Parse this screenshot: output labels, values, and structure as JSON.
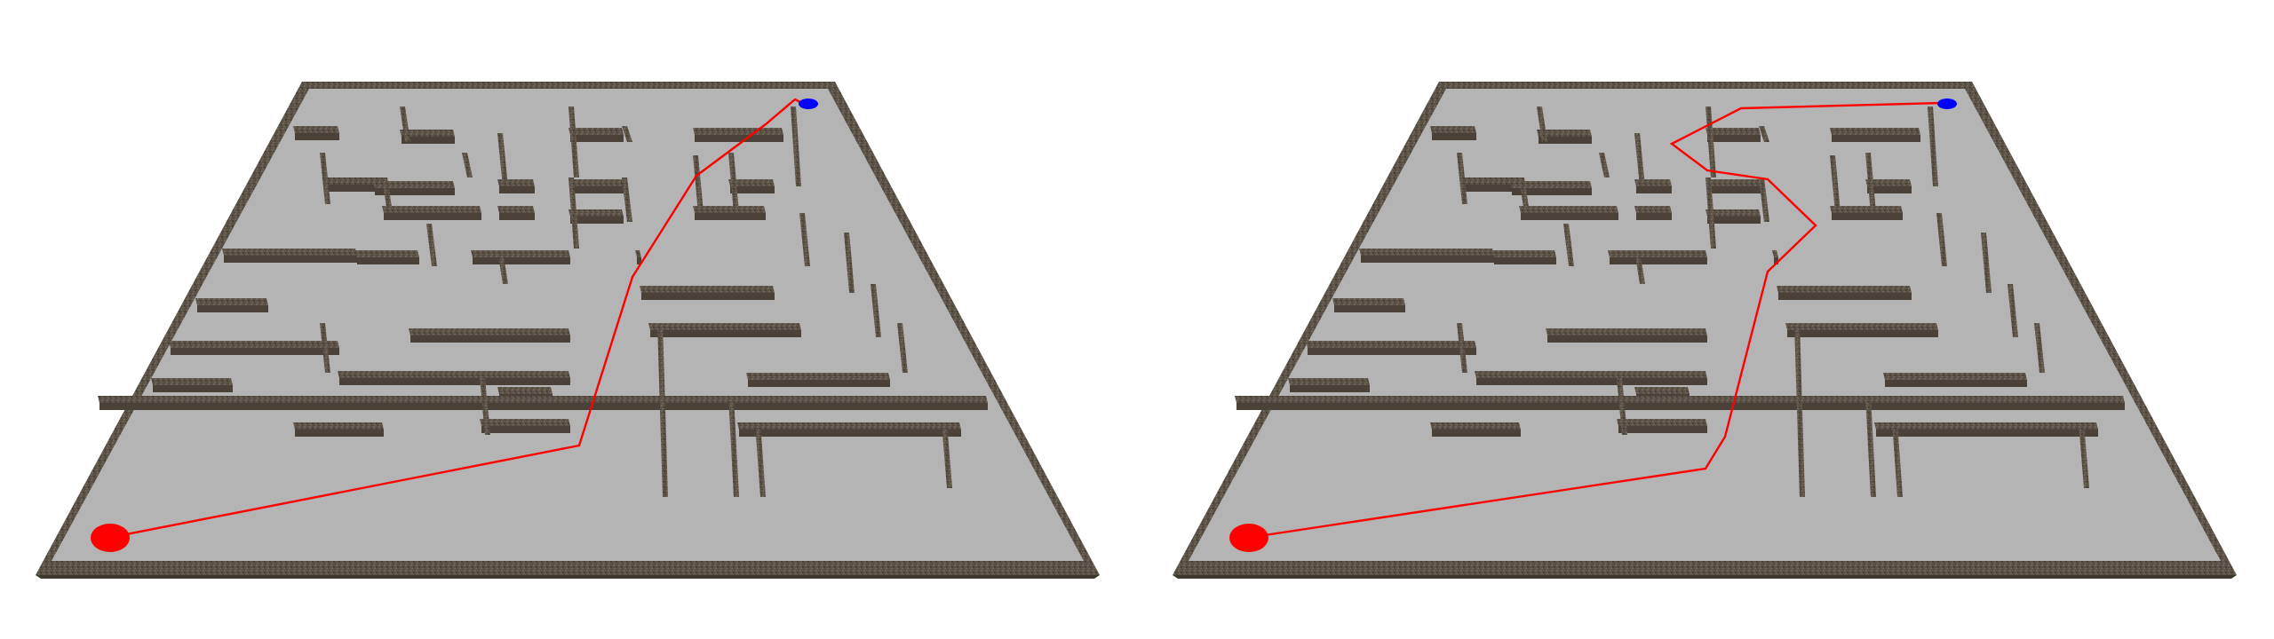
{
  "scene": {
    "panels": [
      {
        "id": "left",
        "start_marker": {
          "name": "start-marker",
          "color": "#ff0000"
        },
        "goal_marker": {
          "name": "goal-marker",
          "color": "#0000ff"
        },
        "path_color": "#ff0000"
      },
      {
        "id": "right",
        "start_marker": {
          "name": "start-marker",
          "color": "#ff0000"
        },
        "goal_marker": {
          "name": "goal-marker",
          "color": "#0000ff"
        },
        "path_color": "#ff0000"
      }
    ],
    "colors": {
      "floor": "#b4b4b4",
      "wall_top": "#5a5147",
      "wall_side": "#6a5f52",
      "wall_dark": "#3f382f",
      "background": "#ffffff"
    }
  }
}
